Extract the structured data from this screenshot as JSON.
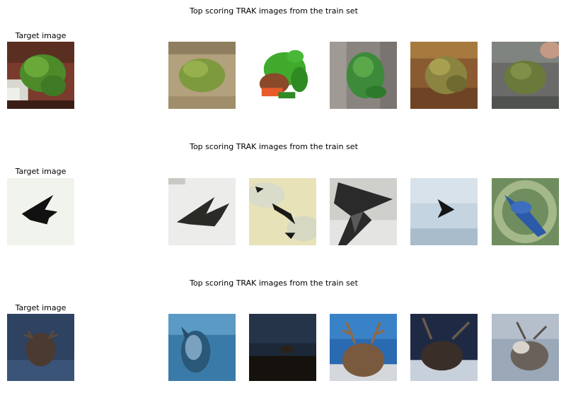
{
  "rows": [
    {
      "title": "Top scoring TRAK images from the train set",
      "target_label": "Target image",
      "target_image": "green-tree-frog",
      "train_images": [
        "green-frog-on-wood",
        "green-tree-frog-white-bg",
        "green-frog-on-bark",
        "brown-toad",
        "frog-in-hand"
      ]
    },
    {
      "title": "Top scoring TRAK images from the train set",
      "target_label": "Target image",
      "target_image": "black-jet-silhouette",
      "train_images": [
        "black-jet-grey-bg",
        "jets-in-yellow-sky",
        "dark-aircraft-closeup",
        "jet-in-blue-sky",
        "blue-bird-on-green"
      ]
    },
    {
      "title": "Top scoring TRAK images from the train set",
      "target_label": "Target image",
      "target_image": "deer-in-blue",
      "train_images": [
        "deer-head-blue",
        "deer-in-dark-field",
        "reindeer-blue-sky",
        "reindeer-snow-dark",
        "deer-grey-sky"
      ]
    }
  ]
}
